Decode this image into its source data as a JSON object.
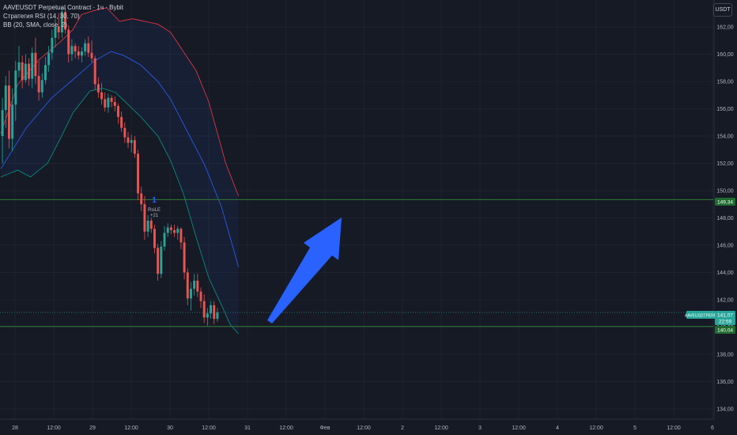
{
  "legend": {
    "symbol_line": "AAVEUSDT Perpetual Contract · 1ч · Bybit",
    "strategy_line": "Стратегия RSI (14, 30, 70)",
    "bb_line": "BB (20, SMA, close, 2)"
  },
  "currency": "USDT",
  "colors": {
    "background": "#161a25",
    "up": "#26a69a",
    "down": "#ef5350",
    "bb_upper": "#f23645",
    "bb_basis": "#2962ff",
    "bb_lower": "#089981",
    "level_line": "#2e7d32",
    "arrow": "#2962ff"
  },
  "signal": {
    "marker": "1",
    "label": "RsiLE",
    "value": "+21"
  },
  "price_tags": {
    "symbol": "AAVEUSDTPERP",
    "current": "141,07",
    "countdown": "22:59",
    "resistance": "149,34",
    "support": "140,04"
  },
  "chart_data": {
    "type": "candlestick",
    "timeframe": "1h",
    "y_axis_ticks": [
      "162,00",
      "160,00",
      "158,00",
      "156,00",
      "154,00",
      "152,00",
      "150,00",
      "148,00",
      "146,00",
      "144,00",
      "142,00",
      "140,00",
      "138,00",
      "136,00",
      "134,00"
    ],
    "ylim": [
      133.5,
      163.5
    ],
    "x_axis_ticks": [
      "28",
      "12:00",
      "29",
      "12:00",
      "30",
      "12:00",
      "31",
      "12:00",
      "Фев",
      "12:00",
      "2",
      "12:00",
      "3",
      "12:00",
      "4",
      "12:00",
      "5",
      "12:00",
      "6"
    ],
    "horizontal_levels": [
      149.34,
      140.04
    ],
    "current_price": 141.07,
    "candles": [
      {
        "o": 154.0,
        "h": 156.8,
        "l": 152.0,
        "c": 155.9
      },
      {
        "o": 155.9,
        "h": 158.4,
        "l": 154.6,
        "c": 157.7
      },
      {
        "o": 157.7,
        "h": 158.8,
        "l": 153.1,
        "c": 153.8
      },
      {
        "o": 153.8,
        "h": 157.5,
        "l": 152.9,
        "c": 156.3
      },
      {
        "o": 156.3,
        "h": 159.5,
        "l": 155.1,
        "c": 158.8
      },
      {
        "o": 158.8,
        "h": 160.6,
        "l": 158.3,
        "c": 159.4
      },
      {
        "o": 159.4,
        "h": 159.9,
        "l": 157.5,
        "c": 158.1
      },
      {
        "o": 158.1,
        "h": 160.0,
        "l": 157.9,
        "c": 159.3
      },
      {
        "o": 159.3,
        "h": 159.7,
        "l": 157.7,
        "c": 158.2
      },
      {
        "o": 158.2,
        "h": 160.5,
        "l": 157.5,
        "c": 160.1
      },
      {
        "o": 160.1,
        "h": 161.2,
        "l": 157.8,
        "c": 158.4
      },
      {
        "o": 158.4,
        "h": 159.5,
        "l": 156.6,
        "c": 157.2
      },
      {
        "o": 157.2,
        "h": 158.6,
        "l": 156.8,
        "c": 158.1
      },
      {
        "o": 158.1,
        "h": 159.8,
        "l": 157.8,
        "c": 159.2
      },
      {
        "o": 159.2,
        "h": 160.6,
        "l": 158.7,
        "c": 160.1
      },
      {
        "o": 160.1,
        "h": 161.8,
        "l": 159.6,
        "c": 161.2
      },
      {
        "o": 161.2,
        "h": 162.6,
        "l": 160.5,
        "c": 162.0
      },
      {
        "o": 162.0,
        "h": 163.0,
        "l": 161.1,
        "c": 161.6
      },
      {
        "o": 161.6,
        "h": 163.4,
        "l": 161.2,
        "c": 163.1
      },
      {
        "o": 163.1,
        "h": 163.4,
        "l": 161.5,
        "c": 161.8
      },
      {
        "o": 161.8,
        "h": 162.1,
        "l": 159.4,
        "c": 160.0
      },
      {
        "o": 160.0,
        "h": 161.1,
        "l": 159.5,
        "c": 160.6
      },
      {
        "o": 160.6,
        "h": 160.8,
        "l": 159.7,
        "c": 160.2
      },
      {
        "o": 160.2,
        "h": 160.6,
        "l": 159.6,
        "c": 159.9
      },
      {
        "o": 159.9,
        "h": 160.5,
        "l": 159.4,
        "c": 160.2
      },
      {
        "o": 160.2,
        "h": 161.1,
        "l": 159.9,
        "c": 160.8
      },
      {
        "o": 160.8,
        "h": 161.3,
        "l": 159.8,
        "c": 160.1
      },
      {
        "o": 160.1,
        "h": 161.0,
        "l": 159.4,
        "c": 159.7
      },
      {
        "o": 159.7,
        "h": 159.9,
        "l": 157.4,
        "c": 157.8
      },
      {
        "o": 157.8,
        "h": 158.3,
        "l": 156.8,
        "c": 157.2
      },
      {
        "o": 157.2,
        "h": 157.9,
        "l": 156.3,
        "c": 156.7
      },
      {
        "o": 156.7,
        "h": 157.2,
        "l": 155.8,
        "c": 156.1
      },
      {
        "o": 156.1,
        "h": 157.1,
        "l": 155.7,
        "c": 156.8
      },
      {
        "o": 156.8,
        "h": 157.0,
        "l": 156.1,
        "c": 156.5
      },
      {
        "o": 156.5,
        "h": 156.9,
        "l": 155.8,
        "c": 156.2
      },
      {
        "o": 156.2,
        "h": 156.4,
        "l": 154.9,
        "c": 155.4
      },
      {
        "o": 155.4,
        "h": 155.8,
        "l": 154.3,
        "c": 154.6
      },
      {
        "o": 154.6,
        "h": 155.0,
        "l": 153.5,
        "c": 153.9
      },
      {
        "o": 153.9,
        "h": 154.3,
        "l": 153.1,
        "c": 153.5
      },
      {
        "o": 153.5,
        "h": 154.1,
        "l": 152.8,
        "c": 153.7
      },
      {
        "o": 153.7,
        "h": 154.0,
        "l": 152.4,
        "c": 152.7
      },
      {
        "o": 152.7,
        "h": 153.0,
        "l": 149.3,
        "c": 149.8
      },
      {
        "o": 149.8,
        "h": 150.3,
        "l": 148.5,
        "c": 149.0
      },
      {
        "o": 149.0,
        "h": 149.6,
        "l": 146.4,
        "c": 147.0
      },
      {
        "o": 147.0,
        "h": 148.2,
        "l": 146.6,
        "c": 147.8
      },
      {
        "o": 147.8,
        "h": 148.0,
        "l": 146.9,
        "c": 147.2
      },
      {
        "o": 147.2,
        "h": 147.5,
        "l": 145.4,
        "c": 145.8
      },
      {
        "o": 145.8,
        "h": 146.1,
        "l": 143.4,
        "c": 143.9
      },
      {
        "o": 143.9,
        "h": 146.3,
        "l": 143.6,
        "c": 145.9
      },
      {
        "o": 145.9,
        "h": 147.4,
        "l": 145.6,
        "c": 146.9
      },
      {
        "o": 146.9,
        "h": 147.6,
        "l": 146.6,
        "c": 147.3
      },
      {
        "o": 147.3,
        "h": 147.5,
        "l": 146.8,
        "c": 147.1
      },
      {
        "o": 147.1,
        "h": 147.5,
        "l": 146.6,
        "c": 146.9
      },
      {
        "o": 146.9,
        "h": 147.4,
        "l": 146.4,
        "c": 147.2
      },
      {
        "o": 147.2,
        "h": 147.3,
        "l": 145.7,
        "c": 146.2
      },
      {
        "o": 146.2,
        "h": 146.6,
        "l": 143.5,
        "c": 144.0
      },
      {
        "o": 144.0,
        "h": 144.3,
        "l": 141.6,
        "c": 142.1
      },
      {
        "o": 142.1,
        "h": 143.3,
        "l": 141.2,
        "c": 142.8
      },
      {
        "o": 142.8,
        "h": 143.9,
        "l": 142.3,
        "c": 143.4
      },
      {
        "o": 143.4,
        "h": 143.9,
        "l": 142.2,
        "c": 142.6
      },
      {
        "o": 142.6,
        "h": 142.9,
        "l": 141.4,
        "c": 141.9
      },
      {
        "o": 141.9,
        "h": 142.4,
        "l": 140.3,
        "c": 140.7
      },
      {
        "o": 140.7,
        "h": 141.4,
        "l": 140.1,
        "c": 141.0
      },
      {
        "o": 141.0,
        "h": 141.9,
        "l": 140.6,
        "c": 141.6
      },
      {
        "o": 141.6,
        "h": 141.9,
        "l": 140.2,
        "c": 140.6
      },
      {
        "o": 140.6,
        "h": 141.4,
        "l": 140.4,
        "c": 141.07
      }
    ],
    "bollinger": {
      "upper": [
        [
          0,
          154.2
        ],
        [
          4,
          157.8
        ],
        [
          9,
          159.6
        ],
        [
          14,
          160.9
        ],
        [
          17,
          161.8
        ],
        [
          19,
          162.9
        ],
        [
          22,
          163.2
        ],
        [
          25,
          163.4
        ],
        [
          28,
          162.4
        ],
        [
          31,
          162.6
        ],
        [
          34,
          162.4
        ],
        [
          37,
          162.2
        ],
        [
          40,
          161.6
        ],
        [
          43,
          160.2
        ],
        [
          46,
          158.8
        ],
        [
          49,
          156.5
        ],
        [
          53,
          152.0
        ],
        [
          56,
          149.6
        ]
      ],
      "basis": [
        [
          0,
          151.6
        ],
        [
          6,
          154.6
        ],
        [
          12,
          156.8
        ],
        [
          18,
          158.4
        ],
        [
          22,
          159.5
        ],
        [
          26,
          160.2
        ],
        [
          29,
          159.9
        ],
        [
          33,
          159.2
        ],
        [
          37,
          158.0
        ],
        [
          40,
          156.7
        ],
        [
          44,
          154.3
        ],
        [
          48,
          151.9
        ],
        [
          52,
          148.8
        ],
        [
          56,
          144.4
        ]
      ],
      "lower": [
        [
          0,
          151.0
        ],
        [
          4,
          151.5
        ],
        [
          7,
          151.0
        ],
        [
          11,
          152.0
        ],
        [
          14,
          153.8
        ],
        [
          17,
          155.7
        ],
        [
          21,
          157.3
        ],
        [
          24,
          157.5
        ],
        [
          27,
          157.2
        ],
        [
          30,
          156.3
        ],
        [
          33,
          155.4
        ],
        [
          37,
          154.0
        ],
        [
          40,
          152.2
        ],
        [
          43,
          149.8
        ],
        [
          46,
          146.6
        ],
        [
          49,
          143.6
        ],
        [
          52,
          141.6
        ],
        [
          54,
          140.2
        ],
        [
          56,
          139.5
        ]
      ]
    }
  }
}
